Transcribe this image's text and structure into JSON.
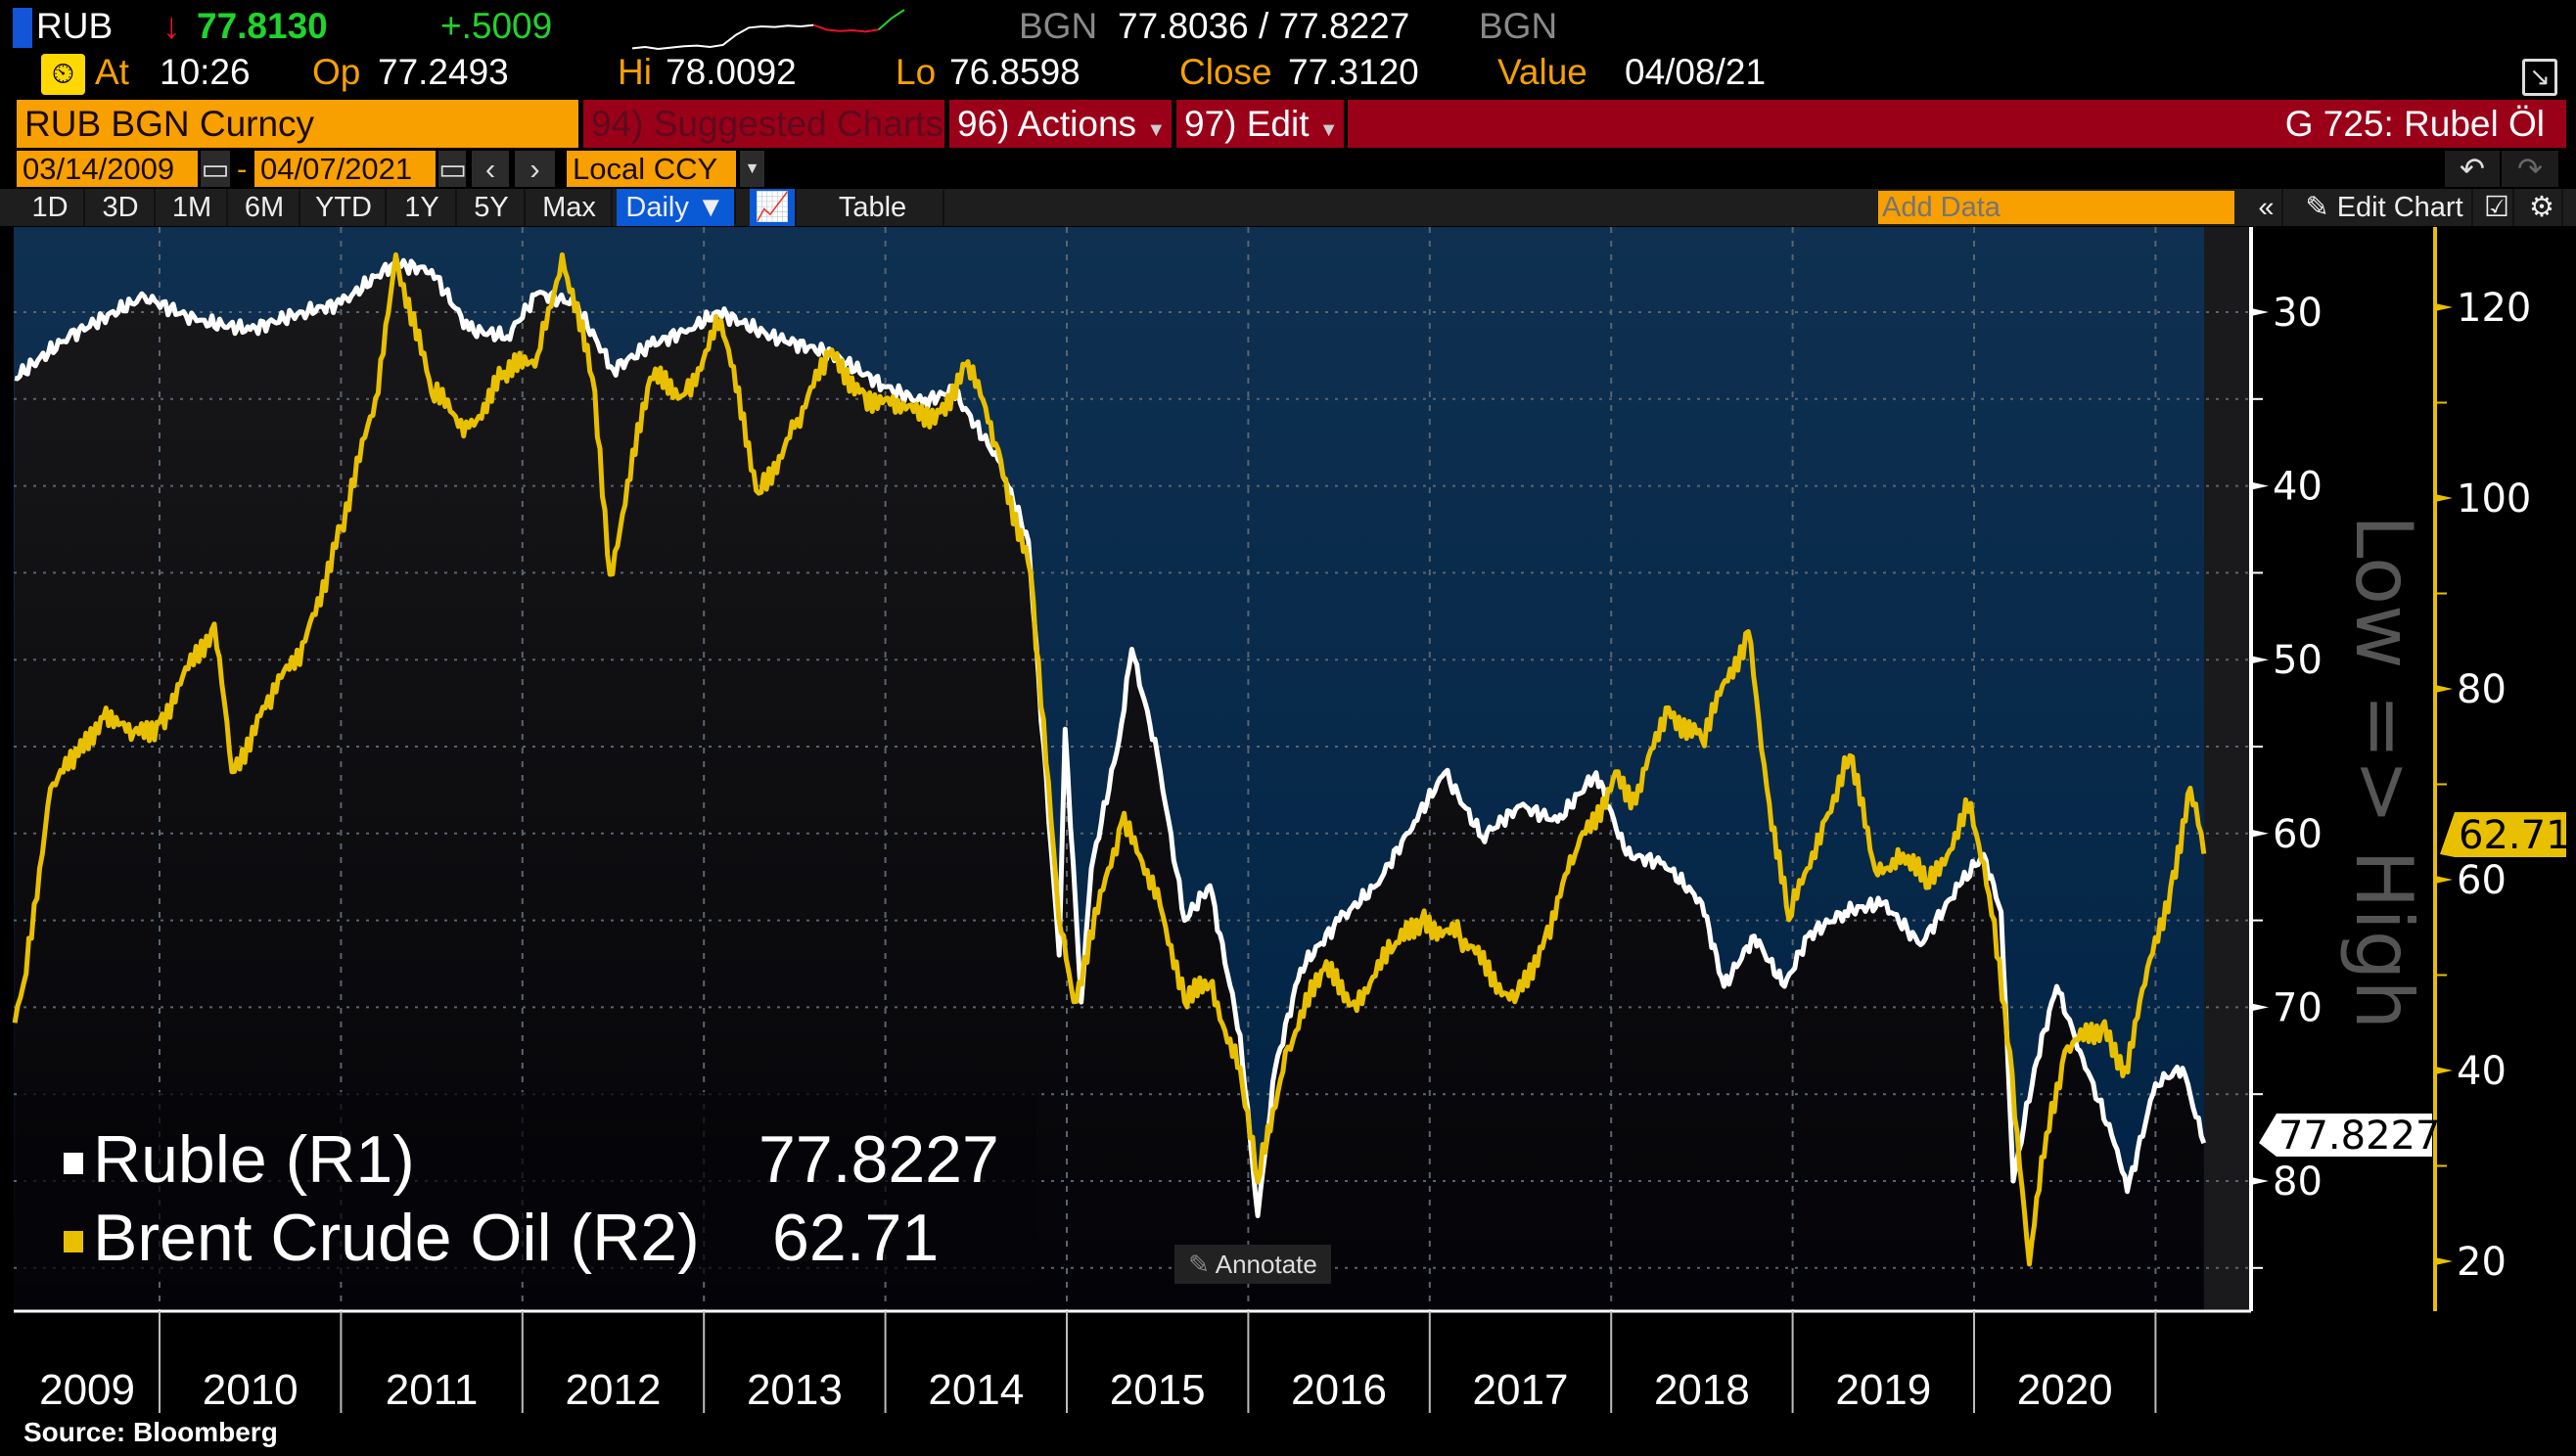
{
  "header": {
    "ticker": "RUB",
    "last": "77.8130",
    "change": "+.5009",
    "source1": "BGN",
    "bid_ask": "77.8036 / 77.8227",
    "source2": "BGN",
    "sparkline": [
      3,
      3.2,
      2.9,
      3.1,
      3.3,
      3.4,
      3.2,
      3.5,
      5,
      6.1,
      6.3,
      6.2,
      6.4,
      6.3,
      6.5,
      5.8,
      5.6,
      5.7,
      5.5,
      5.8,
      7.5,
      8.8
    ],
    "at_label": "At",
    "time": "10:26",
    "op_label": "Op",
    "open": "77.2493",
    "hi_label": "Hi",
    "high": "78.0092",
    "lo_label": "Lo",
    "low": "76.8598",
    "close_label": "Close",
    "close": "77.3120",
    "value_label": "Value",
    "value_date": "04/08/21"
  },
  "command": {
    "security": "RUB BGN Curncy",
    "suggested": "94) Suggested Charts",
    "actions": "96) Actions",
    "edit": "97) Edit",
    "page_title": "G 725: Rubel Öl"
  },
  "range": {
    "start": "03/14/2009",
    "dash": "-",
    "end": "04/07/2021",
    "currency": "Local CCY"
  },
  "toolbar": {
    "periods": [
      "1D",
      "3D",
      "1M",
      "6M",
      "YTD",
      "1Y",
      "5Y",
      "Max"
    ],
    "frequency": "Daily ▼",
    "table": "Table",
    "add_data_placeholder": "Add Data",
    "collapse": "«",
    "edit_chart": "Edit Chart"
  },
  "annotate": "Annotate",
  "source": "Source:  Bloomberg",
  "colors": {
    "ruble": "#ffffff",
    "oil": "#e8c000",
    "bg_top": "#0f3050",
    "bg_bottom": "#002448",
    "command_red": "#9b0019",
    "amber": "#f7a000"
  },
  "chart_data": {
    "type": "line",
    "x_ticks": [
      "2009",
      "2010",
      "2011",
      "2012",
      "2013",
      "2014",
      "2015",
      "2016",
      "2017",
      "2018",
      "2019",
      "2020"
    ],
    "x_range": [
      "2009-03-14",
      "2021-04-07"
    ],
    "grid": true,
    "legend": "bottom-left",
    "axes": {
      "R1": {
        "ticks": [
          30,
          40,
          50,
          60,
          70,
          80
        ],
        "range": [
          25,
          87
        ],
        "inverted": true,
        "label": "Low => High"
      },
      "R2": {
        "ticks": [
          20,
          40,
          60,
          80,
          100,
          120
        ],
        "range": [
          15,
          128
        ]
      }
    },
    "series": [
      {
        "name": "Ruble (R1)",
        "axis": "R1",
        "last": "77.8227",
        "points": [
          [
            "2009-03-14",
            33.8
          ],
          [
            "2009-07-01",
            31.4
          ],
          [
            "2009-12-01",
            29.1
          ],
          [
            "2010-03-15",
            30.5
          ],
          [
            "2010-07-01",
            31.0
          ],
          [
            "2010-10-15",
            30.0
          ],
          [
            "2011-01-01",
            29.5
          ],
          [
            "2011-04-15",
            27.2
          ],
          [
            "2011-07-01",
            27.6
          ],
          [
            "2011-09-15",
            31.0
          ],
          [
            "2011-12-01",
            31.4
          ],
          [
            "2012-02-01",
            28.9
          ],
          [
            "2012-04-15",
            29.5
          ],
          [
            "2012-07-01",
            33.3
          ],
          [
            "2012-09-15",
            31.9
          ],
          [
            "2012-12-01",
            31.0
          ],
          [
            "2013-02-01",
            30.0
          ],
          [
            "2013-05-15",
            31.4
          ],
          [
            "2013-09-15",
            32.4
          ],
          [
            "2014-01-01",
            34.3
          ],
          [
            "2014-03-15",
            35.2
          ],
          [
            "2014-05-15",
            34.5
          ],
          [
            "2014-08-15",
            38.5
          ],
          [
            "2014-10-15",
            43.2
          ],
          [
            "2014-12-16",
            67.0
          ],
          [
            "2014-12-28",
            54.0
          ],
          [
            "2015-01-30",
            69.7
          ],
          [
            "2015-02-20",
            62.0
          ],
          [
            "2015-04-15",
            54.6
          ],
          [
            "2015-05-10",
            49.4
          ],
          [
            "2015-07-01",
            55.5
          ],
          [
            "2015-08-25",
            65.0
          ],
          [
            "2015-10-15",
            63.0
          ],
          [
            "2015-12-15",
            71.6
          ],
          [
            "2016-01-20",
            82.0
          ],
          [
            "2016-02-25",
            73.5
          ],
          [
            "2016-04-15",
            67.8
          ],
          [
            "2016-07-01",
            65.0
          ],
          [
            "2016-09-15",
            63.0
          ],
          [
            "2016-12-01",
            59.3
          ],
          [
            "2017-02-01",
            56.5
          ],
          [
            "2017-04-15",
            60.2
          ],
          [
            "2017-07-01",
            58.4
          ],
          [
            "2017-09-15",
            59.3
          ],
          [
            "2017-12-01",
            56.5
          ],
          [
            "2018-02-01",
            61.2
          ],
          [
            "2018-04-15",
            61.7
          ],
          [
            "2018-07-01",
            64.0
          ],
          [
            "2018-08-15",
            68.8
          ],
          [
            "2018-10-15",
            65.9
          ],
          [
            "2018-12-15",
            68.8
          ],
          [
            "2019-02-01",
            65.9
          ],
          [
            "2019-04-15",
            64.5
          ],
          [
            "2019-07-01",
            64.0
          ],
          [
            "2019-09-15",
            66.4
          ],
          [
            "2019-12-01",
            63.0
          ],
          [
            "2020-01-20",
            61.2
          ],
          [
            "2020-02-25",
            64.5
          ],
          [
            "2020-03-19",
            80.0
          ],
          [
            "2020-05-01",
            73.5
          ],
          [
            "2020-06-15",
            68.8
          ],
          [
            "2020-08-01",
            72.5
          ],
          [
            "2020-10-15",
            78.2
          ],
          [
            "2020-11-05",
            80.6
          ],
          [
            "2021-01-01",
            74.4
          ],
          [
            "2021-02-25",
            73.5
          ],
          [
            "2021-04-07",
            77.8227
          ]
        ]
      },
      {
        "name": "Brent Crude Oil (R2)",
        "axis": "R2",
        "last": "62.71",
        "points": [
          [
            "2009-03-14",
            45.0
          ],
          [
            "2009-04-01",
            49.0
          ],
          [
            "2009-05-25",
            69.6
          ],
          [
            "2009-07-20",
            73.0
          ],
          [
            "2009-09-15",
            78.0
          ],
          [
            "2009-11-05",
            74.7
          ],
          [
            "2010-01-01",
            76.5
          ],
          [
            "2010-04-20",
            86.8
          ],
          [
            "2010-05-25",
            71.3
          ],
          [
            "2010-08-01",
            78.0
          ],
          [
            "2010-10-20",
            85.0
          ],
          [
            "2011-01-01",
            97.0
          ],
          [
            "2011-03-15",
            111.0
          ],
          [
            "2011-04-20",
            125.5
          ],
          [
            "2011-07-01",
            111.0
          ],
          [
            "2011-09-15",
            107.4
          ],
          [
            "2011-11-20",
            112.6
          ],
          [
            "2012-02-01",
            115.0
          ],
          [
            "2012-03-20",
            125.5
          ],
          [
            "2012-05-20",
            112.6
          ],
          [
            "2012-06-25",
            92.0
          ],
          [
            "2012-09-15",
            112.6
          ],
          [
            "2012-11-25",
            111.0
          ],
          [
            "2013-02-05",
            118.6
          ],
          [
            "2013-04-20",
            100.5
          ],
          [
            "2013-07-01",
            107.4
          ],
          [
            "2013-09-10",
            115.0
          ],
          [
            "2013-11-20",
            111.0
          ],
          [
            "2014-02-01",
            109.0
          ],
          [
            "2014-04-20",
            109.0
          ],
          [
            "2014-06-15",
            114.3
          ],
          [
            "2014-08-10",
            105.7
          ],
          [
            "2014-10-20",
            92.0
          ],
          [
            "2014-12-15",
            56.0
          ],
          [
            "2015-01-15",
            47.2
          ],
          [
            "2015-04-20",
            66.0
          ],
          [
            "2015-07-01",
            59.0
          ],
          [
            "2015-08-25",
            47.2
          ],
          [
            "2015-10-15",
            49.0
          ],
          [
            "2015-12-15",
            40.3
          ],
          [
            "2016-01-20",
            28.3
          ],
          [
            "2016-03-15",
            42.0
          ],
          [
            "2016-06-01",
            50.6
          ],
          [
            "2016-08-01",
            47.2
          ],
          [
            "2016-10-15",
            52.4
          ],
          [
            "2016-12-15",
            55.8
          ],
          [
            "2017-03-01",
            54.0
          ],
          [
            "2017-06-20",
            47.2
          ],
          [
            "2017-08-20",
            54.0
          ],
          [
            "2017-10-20",
            62.7
          ],
          [
            "2018-01-15",
            71.3
          ],
          [
            "2018-02-20",
            68.0
          ],
          [
            "2018-04-20",
            78.0
          ],
          [
            "2018-07-01",
            74.7
          ],
          [
            "2018-10-03",
            86.0
          ],
          [
            "2018-11-10",
            69.6
          ],
          [
            "2018-12-24",
            55.8
          ],
          [
            "2019-03-01",
            66.0
          ],
          [
            "2019-04-25",
            73.0
          ],
          [
            "2019-06-15",
            61.0
          ],
          [
            "2019-08-10",
            62.7
          ],
          [
            "2019-10-01",
            59.2
          ],
          [
            "2019-12-25",
            68.0
          ],
          [
            "2020-02-01",
            58.4
          ],
          [
            "2020-03-12",
            42.0
          ],
          [
            "2020-04-21",
            19.7
          ],
          [
            "2020-05-25",
            33.4
          ],
          [
            "2020-07-01",
            42.0
          ],
          [
            "2020-09-15",
            44.6
          ],
          [
            "2020-11-01",
            40.3
          ],
          [
            "2020-12-10",
            49.0
          ],
          [
            "2021-02-01",
            59.2
          ],
          [
            "2021-03-10",
            69.6
          ],
          [
            "2021-04-07",
            62.71
          ]
        ]
      }
    ]
  }
}
